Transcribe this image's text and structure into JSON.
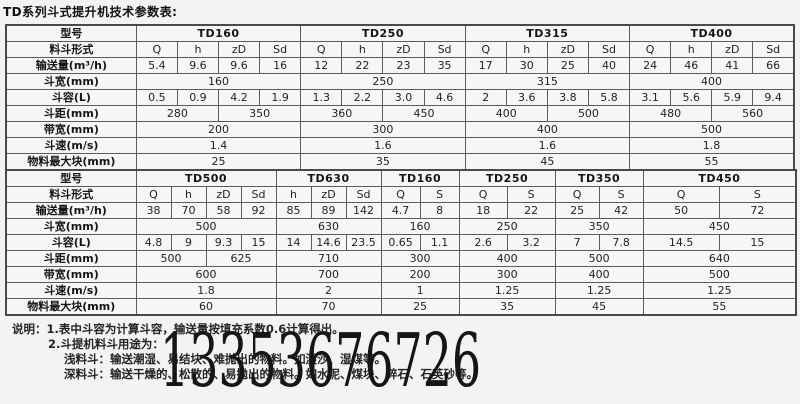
{
  "title": "TD系列斗式提升机技术参数表:",
  "table1": {
    "rows": [
      {
        "label": "型号",
        "cells": [
          {
            "t": "TD160",
            "cs": 4,
            "b": 1
          },
          {
            "t": "TD250",
            "cs": 4,
            "b": 1
          },
          {
            "t": "TD315",
            "cs": 4,
            "b": 1
          },
          {
            "t": "TD400",
            "cs": 4,
            "b": 1
          }
        ]
      },
      {
        "label": "料斗形式",
        "cells": [
          {
            "t": "Q"
          },
          {
            "t": "h"
          },
          {
            "t": "zD"
          },
          {
            "t": "Sd"
          },
          {
            "t": "Q"
          },
          {
            "t": "h"
          },
          {
            "t": "zD"
          },
          {
            "t": "Sd"
          },
          {
            "t": "Q"
          },
          {
            "t": "h"
          },
          {
            "t": "zD"
          },
          {
            "t": "Sd"
          },
          {
            "t": "Q"
          },
          {
            "t": "h"
          },
          {
            "t": "zD"
          },
          {
            "t": "Sd"
          }
        ]
      },
      {
        "label": "输送量(m³/h)",
        "cells": [
          {
            "t": "5.4"
          },
          {
            "t": "9.6"
          },
          {
            "t": "9.6"
          },
          {
            "t": "16"
          },
          {
            "t": "12"
          },
          {
            "t": "22"
          },
          {
            "t": "23"
          },
          {
            "t": "35"
          },
          {
            "t": "17"
          },
          {
            "t": "30"
          },
          {
            "t": "25"
          },
          {
            "t": "40"
          },
          {
            "t": "24"
          },
          {
            "t": "46"
          },
          {
            "t": "41"
          },
          {
            "t": "66"
          }
        ]
      },
      {
        "label": "斗宽(mm)",
        "cells": [
          {
            "t": "160",
            "cs": 4
          },
          {
            "t": "250",
            "cs": 4
          },
          {
            "t": "315",
            "cs": 4
          },
          {
            "t": "400",
            "cs": 4
          }
        ]
      },
      {
        "label": "斗容(L)",
        "cells": [
          {
            "t": "0.5"
          },
          {
            "t": "0.9"
          },
          {
            "t": "4.2"
          },
          {
            "t": "1.9"
          },
          {
            "t": "1.3"
          },
          {
            "t": "2.2"
          },
          {
            "t": "3.0"
          },
          {
            "t": "4.6"
          },
          {
            "t": "2"
          },
          {
            "t": "3.6"
          },
          {
            "t": "3.8"
          },
          {
            "t": "5.8"
          },
          {
            "t": "3.1"
          },
          {
            "t": "5.6"
          },
          {
            "t": "5.9"
          },
          {
            "t": "9.4"
          }
        ]
      },
      {
        "label": "斗距(mm)",
        "cells": [
          {
            "t": "280",
            "cs": 2
          },
          {
            "t": "350",
            "cs": 2
          },
          {
            "t": "360",
            "cs": 2
          },
          {
            "t": "450",
            "cs": 2
          },
          {
            "t": "400",
            "cs": 2
          },
          {
            "t": "500",
            "cs": 2
          },
          {
            "t": "480",
            "cs": 2
          },
          {
            "t": "560",
            "cs": 2
          }
        ]
      },
      {
        "label": "带宽(mm)",
        "cells": [
          {
            "t": "200",
            "cs": 4
          },
          {
            "t": "300",
            "cs": 4
          },
          {
            "t": "400",
            "cs": 4
          },
          {
            "t": "500",
            "cs": 4
          }
        ]
      },
      {
        "label": "斗速(m/s)",
        "cells": [
          {
            "t": "1.4",
            "cs": 4
          },
          {
            "t": "1.6",
            "cs": 4
          },
          {
            "t": "1.6",
            "cs": 4
          },
          {
            "t": "1.8",
            "cs": 4
          }
        ]
      },
      {
        "label": "物料最大块(mm)",
        "cells": [
          {
            "t": "25",
            "cs": 4
          },
          {
            "t": "35",
            "cs": 4
          },
          {
            "t": "45",
            "cs": 4
          },
          {
            "t": "55",
            "cs": 4
          }
        ]
      }
    ]
  },
  "table2": {
    "rows": [
      {
        "label": "型号",
        "cells": [
          {
            "t": "TD500",
            "cs": 4,
            "b": 1
          },
          {
            "t": "TD630",
            "cs": 3,
            "b": 1
          },
          {
            "t": "TD160",
            "cs": 2,
            "b": 1
          },
          {
            "t": "TD250",
            "cs": 2,
            "b": 1
          },
          {
            "t": "TD350",
            "cs": 2,
            "b": 1
          },
          {
            "t": "TD450",
            "cs": 2,
            "b": 1
          }
        ]
      },
      {
        "label": "料斗形式",
        "cells": [
          {
            "t": "Q"
          },
          {
            "t": "h"
          },
          {
            "t": "zD"
          },
          {
            "t": "Sd"
          },
          {
            "t": "h"
          },
          {
            "t": "zD"
          },
          {
            "t": "Sd"
          },
          {
            "t": "Q"
          },
          {
            "t": "S"
          },
          {
            "t": "Q"
          },
          {
            "t": "S"
          },
          {
            "t": "Q"
          },
          {
            "t": "S"
          },
          {
            "t": "Q"
          },
          {
            "t": "S"
          }
        ]
      },
      {
        "label": "输送量(m³/h)",
        "cells": [
          {
            "t": "38"
          },
          {
            "t": "70"
          },
          {
            "t": "58"
          },
          {
            "t": "92"
          },
          {
            "t": "85"
          },
          {
            "t": "89"
          },
          {
            "t": "142"
          },
          {
            "t": "4.7"
          },
          {
            "t": "8"
          },
          {
            "t": "18"
          },
          {
            "t": "22"
          },
          {
            "t": "25"
          },
          {
            "t": "42"
          },
          {
            "t": "50"
          },
          {
            "t": "72"
          }
        ]
      },
      {
        "label": "斗宽(mm)",
        "cells": [
          {
            "t": "500",
            "cs": 4
          },
          {
            "t": "630",
            "cs": 3
          },
          {
            "t": "160",
            "cs": 2
          },
          {
            "t": "250",
            "cs": 2
          },
          {
            "t": "350",
            "cs": 2
          },
          {
            "t": "450",
            "cs": 2
          }
        ]
      },
      {
        "label": "斗容(L)",
        "cells": [
          {
            "t": "4.8"
          },
          {
            "t": "9"
          },
          {
            "t": "9.3"
          },
          {
            "t": "15"
          },
          {
            "t": "14"
          },
          {
            "t": "14.6"
          },
          {
            "t": "23.5"
          },
          {
            "t": "0.65"
          },
          {
            "t": "1.1"
          },
          {
            "t": "2.6"
          },
          {
            "t": "3.2"
          },
          {
            "t": "7"
          },
          {
            "t": "7.8"
          },
          {
            "t": "14.5"
          },
          {
            "t": "15"
          }
        ]
      },
      {
        "label": "斗距(mm)",
        "cells": [
          {
            "t": "500",
            "cs": 2
          },
          {
            "t": "625",
            "cs": 2
          },
          {
            "t": "710",
            "cs": 3
          },
          {
            "t": "300",
            "cs": 2
          },
          {
            "t": "400",
            "cs": 2
          },
          {
            "t": "500",
            "cs": 2
          },
          {
            "t": "640",
            "cs": 2
          }
        ]
      },
      {
        "label": "带宽(mm)",
        "cells": [
          {
            "t": "600",
            "cs": 4
          },
          {
            "t": "700",
            "cs": 3
          },
          {
            "t": "200",
            "cs": 2
          },
          {
            "t": "300",
            "cs": 2
          },
          {
            "t": "400",
            "cs": 2
          },
          {
            "t": "500",
            "cs": 2
          }
        ]
      },
      {
        "label": "斗速(m/s)",
        "cells": [
          {
            "t": "1.8",
            "cs": 4
          },
          {
            "t": "2",
            "cs": 3
          },
          {
            "t": "1",
            "cs": 2
          },
          {
            "t": "1.25",
            "cs": 2
          },
          {
            "t": "1.25",
            "cs": 2
          },
          {
            "t": "1.25",
            "cs": 2
          }
        ]
      },
      {
        "label": "物料最大块(mm)",
        "cells": [
          {
            "t": "60",
            "cs": 4
          },
          {
            "t": "70",
            "cs": 3
          },
          {
            "t": "25",
            "cs": 2
          },
          {
            "t": "35",
            "cs": 2
          },
          {
            "t": "45",
            "cs": 2
          },
          {
            "t": "55",
            "cs": 2
          }
        ]
      }
    ]
  },
  "notes": {
    "lines": [
      "说明：1.表中斗容为计算斗容，输送量按填充系数0.6计算得出。",
      "2.斗提机料斗用途为：",
      "浅料斗：输送潮湿、易结块、难抛出的物料。如湿沙、湿煤等。",
      "深料斗：输送干燥的、松散的、易抛出的物料。如水泥、煤块、碎石、石英砂等。"
    ]
  },
  "phone": "13353676726"
}
